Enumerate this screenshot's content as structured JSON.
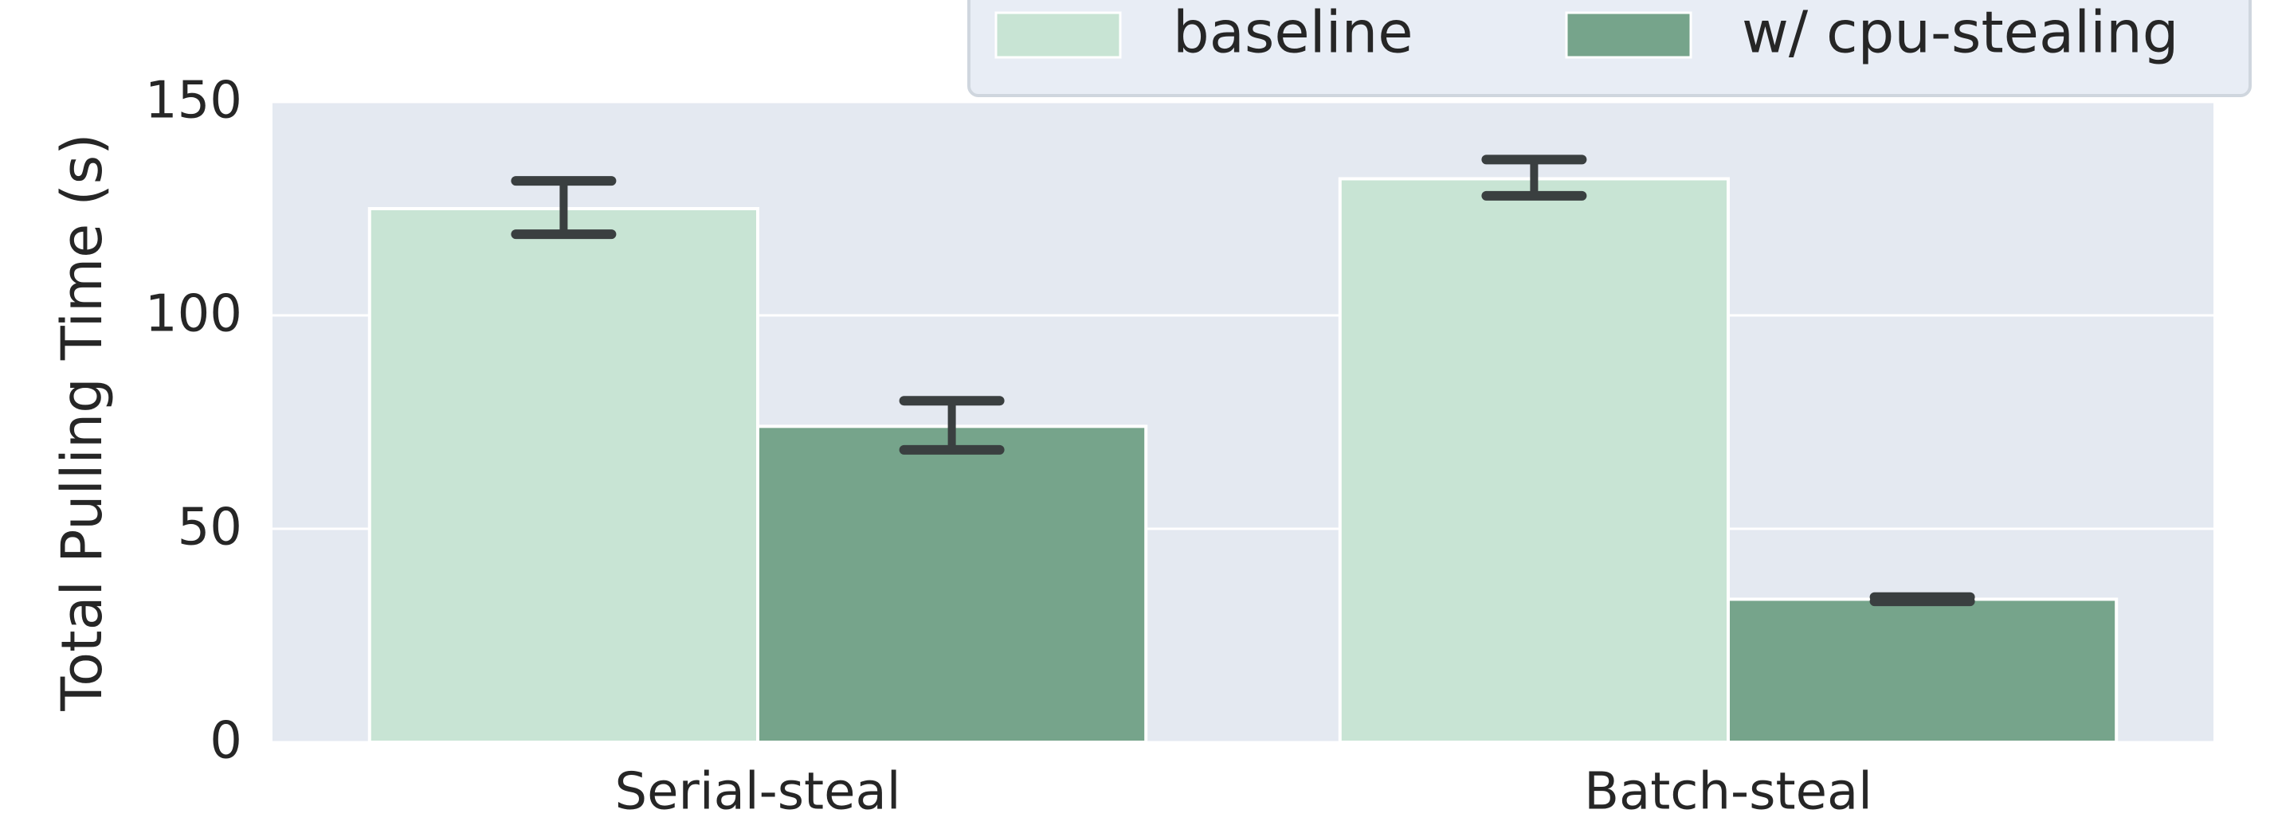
{
  "chart_data": {
    "type": "bar",
    "title": "",
    "xlabel": "",
    "ylabel": "Total Pulling Time (s)",
    "ylim": [
      0,
      150
    ],
    "yticks": [
      0,
      50,
      100,
      150
    ],
    "grid": true,
    "legend_position": "top-right",
    "categories": [
      "Serial-steal",
      "Batch-steal"
    ],
    "series": [
      {
        "name": "baseline",
        "color": "#c8e4d4",
        "values": [
          125,
          132
        ],
        "error": [
          [
            119,
            131.5
          ],
          [
            128,
            136.5
          ]
        ]
      },
      {
        "name": "w/ cpu-stealing",
        "color": "#76a48b",
        "values": [
          74,
          33.5
        ],
        "error": [
          [
            68.5,
            80
          ],
          [
            33,
            34
          ]
        ]
      }
    ]
  },
  "style": {
    "plot_background": "#e4e9f1",
    "legend_background": "#e8edf5",
    "grid_color": "#ffffff",
    "errorbar_color": "#3a3f40"
  }
}
